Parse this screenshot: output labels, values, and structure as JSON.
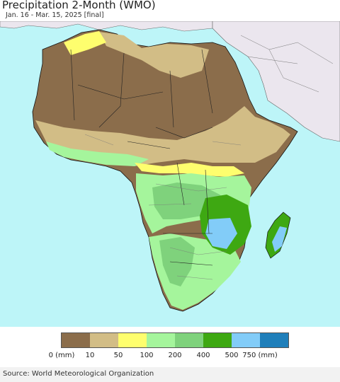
{
  "header": {
    "title": "Precipitation 2-Month (WMO)",
    "subtitle": "Jan. 16 - Mar. 15, 2025 [final]"
  },
  "map": {
    "ocean_color": "#bdf5f8",
    "land_outside_color": "#ebe6ee"
  },
  "legend": {
    "colors": [
      "#8b6d4b",
      "#d2bd86",
      "#fefe6e",
      "#a5f59c",
      "#7fd27c",
      "#3ea812",
      "#82ccf8",
      "#1f7fba"
    ],
    "ticks": [
      "0 (mm)",
      "10",
      "50",
      "100",
      "200",
      "400",
      "500",
      "750 (mm)"
    ]
  },
  "footer": {
    "source": "Source: World Meteorological Organization"
  }
}
